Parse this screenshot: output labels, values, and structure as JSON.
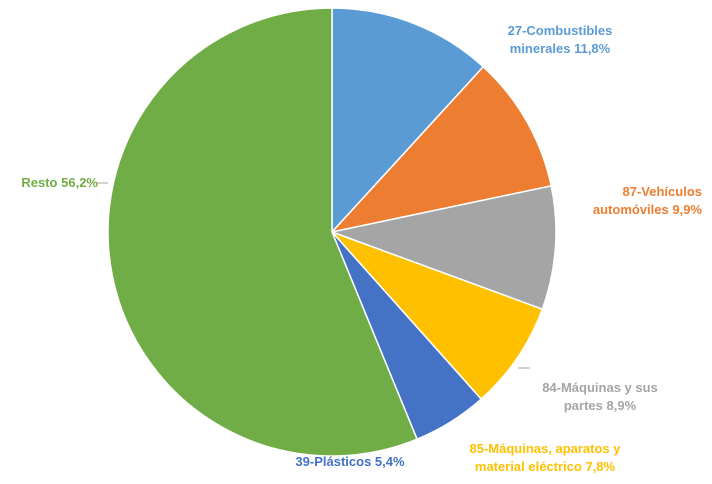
{
  "chart_data": {
    "type": "pie",
    "categories": [
      "27-Combustibles minerales",
      "87-Vehículos automóviles",
      "84-Máquinas y sus partes",
      "85-Máquinas, aparatos y material eléctrico",
      "39-Plásticos",
      "Resto"
    ],
    "values": [
      11.8,
      9.9,
      8.9,
      7.8,
      5.4,
      56.2
    ],
    "value_labels": [
      "11,8%",
      "9,9%",
      "8,9%",
      "7,8%",
      "5,4%",
      "56,2%"
    ],
    "colors": [
      "#5b9bd5",
      "#ed7d31",
      "#a5a5a5",
      "#ffc000",
      "#4472c4",
      "#70ad47"
    ]
  }
}
